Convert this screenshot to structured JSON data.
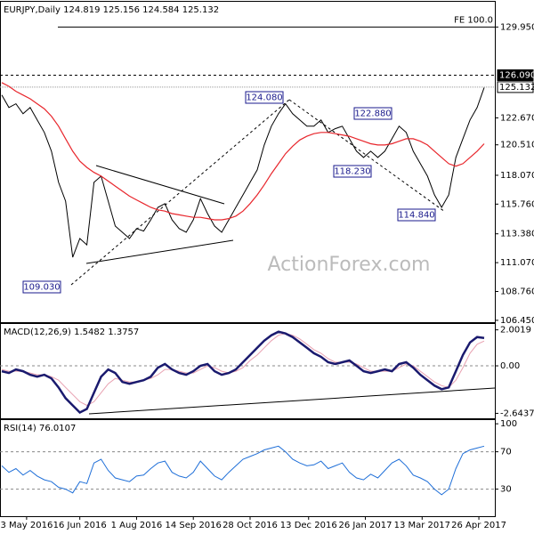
{
  "chart_data": [
    {
      "type": "line",
      "title": "EURJPY,Daily 124.819 125.156 124.584 125.132",
      "x": [
        0,
        4,
        8,
        12,
        16,
        20,
        24,
        28,
        32,
        36,
        40,
        44,
        48,
        52,
        56,
        60,
        64,
        68,
        72,
        76,
        80,
        84,
        88,
        92,
        96,
        100,
        104,
        108,
        112,
        116,
        120,
        124,
        128,
        132,
        136,
        140,
        144,
        148,
        152,
        156,
        160,
        164,
        168,
        172,
        176,
        180,
        184,
        188,
        192,
        196,
        200,
        204,
        208,
        212,
        216,
        220,
        224,
        228,
        232,
        236,
        240,
        244,
        248,
        252,
        256,
        260,
        264,
        268,
        272
      ],
      "xlim": [
        -1,
        278
      ],
      "series": [
        {
          "color": "#000000",
          "values": [
            124.5,
            123.5,
            123.8,
            123.0,
            123.5,
            122.5,
            121.5,
            120.0,
            117.5,
            116.0,
            111.5,
            113.0,
            112.5,
            117.5,
            118.0,
            116.0,
            114.0,
            113.5,
            113.0,
            113.8,
            113.6,
            114.5,
            115.5,
            115.8,
            114.5,
            113.8,
            113.5,
            114.5,
            116.2,
            115.0,
            114.0,
            113.5,
            114.5,
            115.5,
            116.5,
            117.5,
            118.5,
            120.5,
            122.0,
            123.0,
            123.8,
            123.0,
            122.5,
            122.0,
            122.0,
            122.5,
            121.5,
            121.8,
            122.0,
            121.0,
            120.0,
            119.5,
            120.0,
            119.5,
            120.0,
            121.0,
            122.0,
            121.5,
            120.0,
            119.0,
            118.0,
            116.5,
            115.5,
            116.5,
            119.5,
            121.0,
            122.5,
            123.5,
            125.1
          ]
        },
        {
          "color": "#e8262c",
          "values": [
            125.5,
            125.2,
            124.8,
            124.5,
            124.2,
            123.8,
            123.4,
            122.8,
            122.0,
            121.0,
            120.0,
            119.2,
            118.7,
            118.3,
            118.0,
            117.6,
            117.2,
            116.8,
            116.4,
            116.1,
            115.8,
            115.5,
            115.3,
            115.2,
            115.0,
            114.9,
            114.8,
            114.7,
            114.7,
            114.6,
            114.5,
            114.5,
            114.6,
            114.8,
            115.2,
            115.8,
            116.5,
            117.3,
            118.2,
            119.0,
            119.8,
            120.4,
            120.9,
            121.2,
            121.4,
            121.5,
            121.5,
            121.4,
            121.3,
            121.2,
            121.0,
            120.8,
            120.6,
            120.5,
            120.5,
            120.6,
            120.8,
            121.0,
            121.0,
            120.8,
            120.5,
            120.0,
            119.5,
            119.0,
            118.8,
            119.0,
            119.5,
            120.0,
            120.6
          ]
        }
      ],
      "ylim": [
        106.3,
        131.9
      ],
      "yticks": [
        {
          "value": 129.95,
          "label": "129.950"
        },
        {
          "value": 122.67,
          "label": "122.670"
        },
        {
          "value": 120.51,
          "label": "120.510"
        },
        {
          "value": 118.07,
          "label": "118.070"
        },
        {
          "value": 115.76,
          "label": "115.760"
        },
        {
          "value": 113.38,
          "label": "113.380"
        },
        {
          "value": 111.07,
          "label": "111.070"
        },
        {
          "value": 108.76,
          "label": "108.760"
        },
        {
          "value": 106.45,
          "label": "106.450"
        }
      ],
      "reference_lines": [
        {
          "value": 129.95,
          "label": "FE 100.0"
        },
        {
          "value": 126.09,
          "label": "126.090"
        },
        {
          "value": 125.132,
          "label": "125.132"
        }
      ],
      "annotations": [
        "124.080",
        "122.880",
        "118.230",
        "114.840",
        "109.030"
      ],
      "watermark": "ActionForex.com"
    },
    {
      "type": "line",
      "title": "MACD(12,26,9) 1.5482 1.3757",
      "x": [
        0,
        4,
        8,
        12,
        16,
        20,
        24,
        28,
        32,
        36,
        40,
        44,
        48,
        52,
        56,
        60,
        64,
        68,
        72,
        76,
        80,
        84,
        88,
        92,
        96,
        100,
        104,
        108,
        112,
        116,
        120,
        124,
        128,
        132,
        136,
        140,
        144,
        148,
        152,
        156,
        160,
        164,
        168,
        172,
        176,
        180,
        184,
        188,
        192,
        196,
        200,
        204,
        208,
        212,
        216,
        220,
        224,
        228,
        232,
        236,
        240,
        244,
        248,
        252,
        256,
        260,
        264,
        268,
        272
      ],
      "xlim": [
        -1,
        278
      ],
      "series": [
        {
          "color": "#e8a0b0",
          "values": [
            -0.2,
            -0.3,
            -0.3,
            -0.3,
            -0.4,
            -0.5,
            -0.5,
            -0.6,
            -0.8,
            -1.2,
            -1.6,
            -2.0,
            -2.2,
            -2.0,
            -1.5,
            -1.0,
            -0.7,
            -0.8,
            -0.9,
            -0.9,
            -0.8,
            -0.7,
            -0.5,
            -0.2,
            -0.2,
            -0.3,
            -0.4,
            -0.4,
            -0.2,
            0.0,
            -0.1,
            -0.3,
            -0.4,
            -0.3,
            -0.1,
            0.3,
            0.6,
            1.0,
            1.4,
            1.7,
            1.8,
            1.7,
            1.5,
            1.2,
            0.9,
            0.7,
            0.4,
            0.2,
            0.2,
            0.2,
            0.1,
            -0.1,
            -0.3,
            -0.3,
            -0.3,
            -0.3,
            -0.1,
            0.1,
            0.0,
            -0.3,
            -0.6,
            -0.9,
            -1.1,
            -1.2,
            -0.8,
            -0.1,
            0.7,
            1.2,
            1.38
          ]
        },
        {
          "color": "#1a1a6e",
          "values": [
            -0.3,
            -0.4,
            -0.2,
            -0.3,
            -0.5,
            -0.6,
            -0.5,
            -0.7,
            -1.2,
            -1.8,
            -2.2,
            -2.6,
            -2.4,
            -1.5,
            -0.6,
            -0.2,
            -0.4,
            -0.9,
            -1.0,
            -0.9,
            -0.8,
            -0.6,
            -0.1,
            0.1,
            -0.2,
            -0.4,
            -0.5,
            -0.3,
            0.0,
            0.1,
            -0.3,
            -0.5,
            -0.4,
            -0.2,
            0.2,
            0.6,
            1.0,
            1.4,
            1.7,
            1.9,
            1.8,
            1.6,
            1.3,
            1.0,
            0.7,
            0.5,
            0.2,
            0.1,
            0.2,
            0.3,
            0.0,
            -0.3,
            -0.4,
            -0.3,
            -0.2,
            -0.3,
            0.1,
            0.2,
            -0.1,
            -0.5,
            -0.8,
            -1.1,
            -1.3,
            -1.2,
            -0.3,
            0.6,
            1.3,
            1.6,
            1.55
          ]
        }
      ],
      "ylim": [
        -2.92,
        2.28
      ],
      "yticks": [
        2.0019,
        {
          "value": 0,
          "label": "0.00"
        },
        -2.6437
      ],
      "hlines": [
        0
      ]
    },
    {
      "type": "line",
      "title": "RSI(14) 76.0107",
      "x": [
        0,
        4,
        8,
        12,
        16,
        20,
        24,
        28,
        32,
        36,
        40,
        44,
        48,
        52,
        56,
        60,
        64,
        68,
        72,
        76,
        80,
        84,
        88,
        92,
        96,
        100,
        104,
        108,
        112,
        116,
        120,
        124,
        128,
        132,
        136,
        140,
        144,
        148,
        152,
        156,
        160,
        164,
        168,
        172,
        176,
        180,
        184,
        188,
        192,
        196,
        200,
        204,
        208,
        212,
        216,
        220,
        224,
        228,
        232,
        236,
        240,
        244,
        248,
        252,
        256,
        260,
        264,
        268,
        272
      ],
      "xlim": [
        -1,
        278
      ],
      "series": [
        {
          "color": "#1f6fd8",
          "values": [
            55,
            48,
            52,
            45,
            50,
            44,
            40,
            38,
            32,
            30,
            26,
            38,
            36,
            58,
            62,
            50,
            42,
            40,
            38,
            44,
            45,
            52,
            58,
            60,
            48,
            44,
            42,
            48,
            60,
            52,
            44,
            40,
            48,
            55,
            62,
            65,
            68,
            72,
            74,
            76,
            70,
            62,
            58,
            55,
            56,
            60,
            52,
            55,
            58,
            48,
            42,
            40,
            46,
            42,
            50,
            58,
            62,
            55,
            45,
            42,
            38,
            30,
            24,
            30,
            52,
            68,
            72,
            74,
            76
          ]
        }
      ],
      "ylim": [
        1,
        103
      ],
      "yticks": [
        100,
        70,
        30
      ],
      "hlines": [
        70,
        30
      ],
      "xticks": [
        {
          "value": 14,
          "label": "3 May 2016"
        },
        {
          "value": 44,
          "label": "16 Jun 2016"
        },
        {
          "value": 76,
          "label": "1 Aug 2016"
        },
        {
          "value": 108,
          "label": "14 Sep 2016"
        },
        {
          "value": 140,
          "label": "28 Oct 2016"
        },
        {
          "value": 173,
          "label": "13 Dec 2016"
        },
        {
          "value": 205,
          "label": "26 Jan 2017"
        },
        {
          "value": 237,
          "label": "13 Mar 2017"
        },
        {
          "value": 269,
          "label": "26 Apr 2017"
        }
      ]
    }
  ]
}
